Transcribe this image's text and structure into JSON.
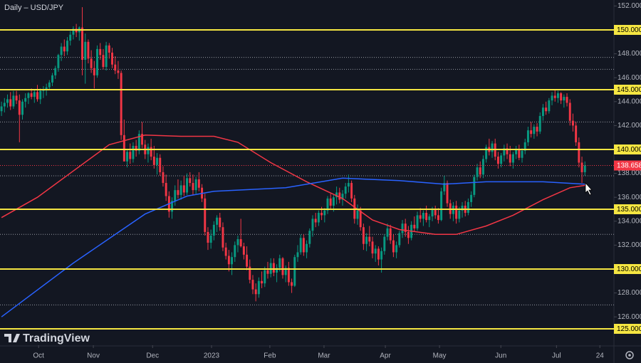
{
  "chart_data": {
    "type": "candlestick",
    "title": "Daily – USD/JPY",
    "brand": "TradingView",
    "colors": {
      "up": "#089981",
      "down": "#f23645",
      "background": "#131722",
      "axis_text": "#b2b5be"
    },
    "xlim": [
      -0.5,
      204.7
    ],
    "xticks": [
      {
        "value": 12.4,
        "label": "Oct"
      },
      {
        "value": 30.7,
        "label": "Nov"
      },
      {
        "value": 50.5,
        "label": "Dec"
      },
      {
        "value": 70.2,
        "label": "2023"
      },
      {
        "value": 89.7,
        "label": "Feb"
      },
      {
        "value": 107.8,
        "label": "Mar"
      },
      {
        "value": 128.3,
        "label": "Apr"
      },
      {
        "value": 146.4,
        "label": "May"
      },
      {
        "value": 166.9,
        "label": "Jun"
      },
      {
        "value": 185.5,
        "label": "Jul"
      },
      {
        "value": 200,
        "label": "24"
      }
    ],
    "ylim": [
      123.63,
      152.5
    ],
    "yticks": [
      {
        "value": 152,
        "label": "152.000"
      },
      {
        "value": 148,
        "label": "148.000"
      },
      {
        "value": 146,
        "label": "146.000"
      },
      {
        "value": 144,
        "label": "144.000"
      },
      {
        "value": 142,
        "label": "142.000"
      },
      {
        "value": 138,
        "label": "138.000"
      },
      {
        "value": 136,
        "label": "136.000"
      },
      {
        "value": 134,
        "label": "134.000"
      },
      {
        "value": 132,
        "label": "132.000"
      },
      {
        "value": 128,
        "label": "128.000"
      },
      {
        "value": 126,
        "label": "126.000"
      }
    ],
    "levels": [
      {
        "value": 150,
        "label": "150.000"
      },
      {
        "value": 145,
        "label": "145.000"
      },
      {
        "value": 140,
        "label": "140.000"
      },
      {
        "value": 135,
        "label": "135.000"
      },
      {
        "value": 130,
        "label": "130.000"
      },
      {
        "value": 125,
        "label": "125.000"
      }
    ],
    "level_color": "#f5e642",
    "dotted_levels": [
      147.7,
      146.7,
      142.3,
      137.8,
      132.9,
      127.0
    ],
    "moving_averages": [
      {
        "color": "#f23645",
        "x": [
          0,
          12,
          24,
          36,
          48,
          60,
          71,
          79,
          90,
          102,
          114,
          124,
          133,
          145,
          152,
          162,
          171,
          181,
          190,
          195
        ],
        "values": [
          134.3,
          136.0,
          138.2,
          140.4,
          141.2,
          141.1,
          141.1,
          140.6,
          138.9,
          137.3,
          135.9,
          134.1,
          133.3,
          132.9,
          132.9,
          133.6,
          134.5,
          135.8,
          136.8,
          137.0
        ]
      },
      {
        "color": "#2962ff",
        "x": [
          0,
          24,
          48,
          62,
          71,
          95,
          114,
          133,
          148,
          162,
          181,
          195
        ],
        "values": [
          126.0,
          130.5,
          134.6,
          136.1,
          136.5,
          136.8,
          137.6,
          137.4,
          137.1,
          137.3,
          137.3,
          137.1
        ]
      }
    ],
    "candles": [
      [
        143.2,
        144.0,
        142.8,
        143.6
      ],
      [
        143.6,
        144.3,
        143.1,
        143.9
      ],
      [
        143.9,
        144.6,
        143.5,
        144.2
      ],
      [
        144.2,
        144.8,
        143.3,
        143.6
      ],
      [
        143.6,
        144.9,
        143.4,
        144.5
      ],
      [
        144.5,
        144.9,
        143.8,
        144.1
      ],
      [
        144.1,
        144.6,
        140.6,
        142.9
      ],
      [
        142.9,
        144.2,
        142.5,
        144.0
      ],
      [
        144.0,
        144.7,
        143.5,
        144.3
      ],
      [
        144.3,
        144.8,
        143.8,
        144.7
      ],
      [
        144.7,
        145.1,
        144.2,
        144.4
      ],
      [
        144.4,
        145.0,
        143.9,
        144.8
      ],
      [
        144.8,
        145.4,
        144.0,
        144.2
      ],
      [
        144.2,
        145.1,
        143.8,
        144.9
      ],
      [
        144.9,
        145.3,
        144.3,
        145.0
      ],
      [
        145.0,
        145.5,
        144.5,
        145.2
      ],
      [
        145.2,
        145.8,
        145.0,
        145.6
      ],
      [
        145.6,
        146.4,
        145.3,
        146.2
      ],
      [
        146.2,
        147.0,
        145.9,
        146.8
      ],
      [
        146.8,
        148.0,
        146.5,
        147.9
      ],
      [
        147.9,
        148.9,
        147.4,
        148.6
      ],
      [
        148.6,
        149.2,
        147.8,
        148.2
      ],
      [
        148.2,
        149.4,
        147.9,
        149.1
      ],
      [
        149.1,
        149.9,
        148.7,
        149.6
      ],
      [
        149.6,
        150.3,
        149.2,
        150.1
      ],
      [
        150.1,
        150.5,
        149.4,
        149.8
      ],
      [
        149.8,
        150.3,
        149.1,
        150.2
      ],
      [
        150.2,
        151.9,
        146.2,
        147.5
      ],
      [
        147.5,
        149.7,
        145.5,
        149.0
      ],
      [
        149.0,
        149.2,
        147.2,
        147.6
      ],
      [
        147.6,
        148.3,
        146.4,
        146.8
      ],
      [
        146.8,
        147.4,
        145.1,
        146.2
      ],
      [
        146.2,
        148.7,
        146.0,
        148.4
      ],
      [
        148.4,
        148.9,
        147.5,
        147.9
      ],
      [
        147.9,
        148.4,
        146.7,
        146.9
      ],
      [
        146.9,
        149.0,
        146.6,
        148.7
      ],
      [
        148.7,
        148.9,
        147.6,
        148.1
      ],
      [
        148.1,
        148.5,
        146.8,
        147.1
      ],
      [
        147.1,
        147.8,
        146.3,
        146.6
      ],
      [
        146.6,
        147.4,
        145.9,
        146.4
      ],
      [
        146.4,
        146.6,
        140.8,
        141.2
      ],
      [
        141.2,
        142.5,
        139.0,
        139.0
      ],
      [
        139.0,
        140.0,
        138.5,
        139.8
      ],
      [
        139.8,
        140.5,
        138.8,
        139.2
      ],
      [
        139.2,
        140.6,
        138.9,
        140.3
      ],
      [
        140.3,
        140.8,
        139.4,
        139.9
      ],
      [
        139.9,
        141.6,
        139.6,
        141.3
      ],
      [
        141.3,
        142.3,
        140.1,
        140.4
      ],
      [
        140.4,
        140.8,
        139.2,
        139.6
      ],
      [
        139.6,
        140.5,
        138.9,
        140.2
      ],
      [
        140.2,
        140.9,
        139.1,
        139.4
      ],
      [
        139.4,
        140.3,
        138.4,
        138.7
      ],
      [
        138.7,
        139.7,
        137.9,
        139.3
      ],
      [
        139.3,
        139.6,
        137.8,
        138.1
      ],
      [
        138.1,
        138.6,
        136.9,
        137.2
      ],
      [
        137.2,
        137.9,
        135.7,
        136.1
      ],
      [
        136.1,
        136.5,
        134.3,
        134.8
      ],
      [
        134.8,
        136.0,
        134.2,
        135.7
      ],
      [
        135.7,
        137.0,
        135.3,
        136.6
      ],
      [
        136.6,
        137.5,
        135.9,
        136.2
      ],
      [
        136.2,
        137.4,
        135.8,
        137.0
      ],
      [
        137.0,
        137.8,
        136.1,
        136.4
      ],
      [
        136.4,
        138.0,
        136.2,
        137.6
      ],
      [
        137.6,
        138.1,
        136.9,
        137.2
      ],
      [
        137.2,
        137.9,
        136.2,
        136.6
      ],
      [
        136.6,
        137.7,
        136.3,
        137.5
      ],
      [
        137.5,
        138.1,
        136.5,
        136.8
      ],
      [
        136.8,
        137.1,
        135.6,
        135.9
      ],
      [
        135.9,
        136.3,
        132.8,
        133.1
      ],
      [
        133.1,
        133.5,
        131.6,
        132.2
      ],
      [
        132.2,
        133.3,
        131.7,
        132.8
      ],
      [
        132.8,
        134.0,
        132.4,
        133.7
      ],
      [
        133.7,
        134.5,
        133.1,
        134.3
      ],
      [
        134.3,
        134.7,
        133.2,
        133.5
      ],
      [
        133.5,
        133.9,
        131.5,
        131.8
      ],
      [
        131.8,
        132.2,
        130.8,
        131.1
      ],
      [
        131.1,
        131.6,
        129.8,
        130.4
      ],
      [
        130.4,
        131.4,
        129.5,
        131.0
      ],
      [
        131.0,
        132.3,
        130.6,
        132.0
      ],
      [
        132.0,
        132.8,
        131.4,
        132.5
      ],
      [
        132.5,
        134.2,
        131.8,
        131.9
      ],
      [
        131.9,
        132.2,
        130.8,
        131.2
      ],
      [
        131.2,
        131.9,
        129.9,
        130.2
      ],
      [
        130.2,
        130.8,
        128.8,
        129.1
      ],
      [
        129.1,
        129.5,
        127.9,
        128.3
      ],
      [
        128.3,
        128.8,
        127.3,
        127.9
      ],
      [
        127.9,
        129.3,
        127.6,
        129.0
      ],
      [
        129.0,
        129.8,
        128.4,
        128.8
      ],
      [
        128.8,
        130.2,
        128.5,
        129.9
      ],
      [
        129.9,
        130.6,
        129.2,
        129.6
      ],
      [
        129.6,
        130.9,
        129.3,
        130.5
      ],
      [
        130.5,
        130.9,
        129.4,
        129.7
      ],
      [
        129.7,
        130.4,
        128.9,
        130.1
      ],
      [
        130.1,
        131.2,
        129.8,
        130.9
      ],
      [
        130.9,
        131.0,
        129.2,
        129.5
      ],
      [
        129.5,
        130.3,
        128.9,
        130.1
      ],
      [
        130.1,
        130.6,
        128.6,
        128.9
      ],
      [
        128.9,
        129.2,
        128.0,
        128.6
      ],
      [
        128.6,
        131.2,
        128.5,
        131.0
      ],
      [
        131.0,
        132.0,
        130.6,
        131.4
      ],
      [
        131.4,
        132.9,
        131.2,
        132.6
      ],
      [
        132.6,
        132.9,
        131.1,
        131.4
      ],
      [
        131.4,
        132.4,
        130.9,
        132.1
      ],
      [
        132.1,
        133.4,
        131.8,
        133.2
      ],
      [
        133.2,
        134.5,
        132.7,
        134.2
      ],
      [
        134.2,
        134.7,
        133.5,
        133.9
      ],
      [
        133.9,
        134.9,
        133.6,
        134.7
      ],
      [
        134.7,
        135.2,
        134.1,
        134.5
      ],
      [
        134.5,
        135.1,
        133.9,
        134.9
      ],
      [
        134.9,
        136.1,
        134.6,
        135.9
      ],
      [
        135.9,
        136.3,
        135.0,
        135.3
      ],
      [
        135.3,
        136.2,
        134.8,
        136.0
      ],
      [
        136.0,
        136.9,
        135.4,
        136.4
      ],
      [
        136.4,
        136.8,
        135.5,
        135.8
      ],
      [
        135.8,
        136.6,
        135.3,
        136.3
      ],
      [
        136.3,
        137.2,
        135.9,
        136.9
      ],
      [
        136.9,
        137.9,
        136.4,
        137.2
      ],
      [
        137.2,
        137.4,
        135.6,
        135.9
      ],
      [
        135.9,
        136.2,
        133.8,
        134.2
      ],
      [
        134.2,
        135.4,
        133.7,
        134.9
      ],
      [
        134.9,
        135.2,
        133.2,
        133.5
      ],
      [
        133.5,
        133.8,
        131.6,
        132.1
      ],
      [
        132.1,
        133.0,
        131.5,
        132.7
      ],
      [
        132.7,
        133.6,
        131.9,
        132.3
      ],
      [
        132.3,
        132.7,
        130.9,
        131.3
      ],
      [
        131.3,
        132.0,
        130.6,
        131.7
      ],
      [
        131.7,
        131.9,
        130.3,
        130.8
      ],
      [
        130.8,
        131.8,
        129.7,
        131.5
      ],
      [
        131.5,
        132.9,
        131.2,
        132.7
      ],
      [
        132.7,
        133.8,
        132.4,
        133.4
      ],
      [
        133.4,
        133.7,
        132.1,
        132.4
      ],
      [
        132.4,
        132.9,
        131.0,
        131.4
      ],
      [
        131.4,
        132.3,
        130.9,
        132.0
      ],
      [
        132.0,
        133.2,
        131.8,
        133.0
      ],
      [
        133.0,
        134.1,
        132.6,
        133.8
      ],
      [
        133.8,
        134.2,
        132.7,
        133.1
      ],
      [
        133.1,
        133.6,
        132.1,
        132.6
      ],
      [
        132.6,
        134.0,
        132.4,
        133.7
      ],
      [
        133.7,
        134.4,
        133.1,
        133.4
      ],
      [
        133.4,
        134.8,
        133.2,
        134.5
      ],
      [
        134.5,
        135.1,
        133.9,
        134.2
      ],
      [
        134.2,
        134.9,
        133.6,
        134.7
      ],
      [
        134.7,
        135.3,
        133.9,
        134.1
      ],
      [
        134.1,
        134.6,
        133.5,
        134.4
      ],
      [
        134.4,
        135.2,
        134.0,
        135.0
      ],
      [
        135.0,
        135.3,
        134.2,
        134.5
      ],
      [
        134.5,
        135.1,
        133.8,
        134.1
      ],
      [
        134.1,
        136.8,
        134.0,
        136.5
      ],
      [
        136.5,
        137.8,
        136.2,
        137.2
      ],
      [
        137.2,
        137.4,
        135.2,
        135.5
      ],
      [
        135.5,
        135.8,
        134.2,
        134.6
      ],
      [
        134.6,
        135.6,
        134.0,
        135.3
      ],
      [
        135.3,
        135.7,
        133.8,
        134.2
      ],
      [
        134.2,
        135.2,
        133.9,
        134.9
      ],
      [
        134.9,
        135.6,
        134.3,
        135.3
      ],
      [
        135.3,
        135.7,
        134.4,
        134.7
      ],
      [
        134.7,
        135.9,
        134.5,
        135.6
      ],
      [
        135.6,
        136.5,
        135.2,
        136.2
      ],
      [
        136.2,
        137.9,
        136.0,
        137.7
      ],
      [
        137.7,
        138.8,
        137.4,
        138.5
      ],
      [
        138.5,
        139.0,
        137.6,
        137.9
      ],
      [
        137.9,
        139.5,
        137.6,
        139.2
      ],
      [
        139.2,
        140.4,
        138.9,
        140.2
      ],
      [
        140.2,
        140.9,
        139.5,
        139.8
      ],
      [
        139.8,
        140.7,
        139.3,
        140.5
      ],
      [
        140.5,
        140.9,
        139.1,
        139.4
      ],
      [
        139.4,
        139.8,
        138.4,
        138.8
      ],
      [
        138.8,
        139.7,
        138.5,
        139.5
      ],
      [
        139.5,
        140.4,
        139.0,
        140.1
      ],
      [
        140.1,
        140.5,
        139.2,
        139.6
      ],
      [
        139.6,
        140.3,
        138.6,
        138.9
      ],
      [
        138.9,
        139.8,
        138.4,
        139.6
      ],
      [
        139.6,
        140.3,
        139.2,
        140.0
      ],
      [
        140.0,
        140.4,
        139.1,
        139.3
      ],
      [
        139.3,
        140.1,
        138.9,
        139.9
      ],
      [
        139.9,
        140.9,
        139.6,
        140.6
      ],
      [
        140.6,
        141.9,
        140.3,
        141.6
      ],
      [
        141.6,
        142.3,
        141.0,
        141.3
      ],
      [
        141.3,
        142.1,
        140.9,
        141.9
      ],
      [
        141.9,
        142.2,
        141.1,
        141.5
      ],
      [
        141.5,
        143.1,
        141.3,
        142.8
      ],
      [
        142.8,
        143.8,
        142.4,
        143.5
      ],
      [
        143.5,
        144.0,
        142.9,
        143.2
      ],
      [
        143.2,
        144.3,
        143.0,
        144.1
      ],
      [
        144.1,
        144.8,
        143.7,
        144.5
      ],
      [
        144.5,
        145.0,
        144.0,
        144.3
      ],
      [
        144.3,
        144.9,
        143.9,
        144.7
      ],
      [
        144.7,
        144.8,
        143.8,
        144.1
      ],
      [
        144.1,
        144.6,
        143.5,
        144.4
      ],
      [
        144.4,
        144.7,
        143.6,
        143.9
      ],
      [
        143.9,
        144.2,
        142.0,
        142.4
      ],
      [
        142.4,
        143.0,
        141.5,
        142.0
      ],
      [
        142.0,
        142.3,
        140.3,
        140.6
      ],
      [
        140.6,
        141.0,
        138.5,
        138.9
      ],
      [
        138.9,
        139.4,
        137.2,
        138.1
      ],
      [
        138.1,
        139.0,
        137.8,
        138.658
      ]
    ]
  }
}
